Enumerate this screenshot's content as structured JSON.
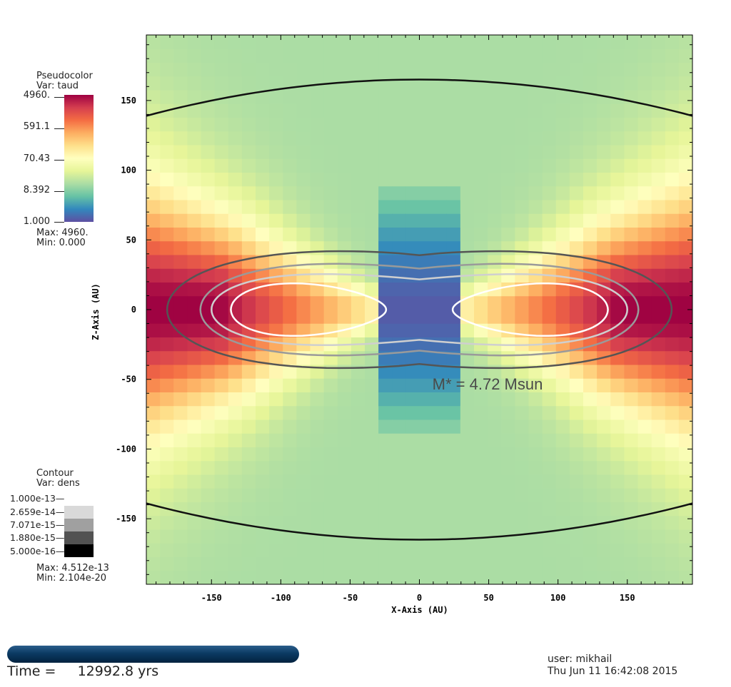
{
  "colors": {
    "tau_scale": [
      "#5e4fa2",
      "#3288bd",
      "#66c2a5",
      "#abdda4",
      "#e6f598",
      "#ffffbf",
      "#fee08b",
      "#fdae61",
      "#f46d43",
      "#d53e4f",
      "#9e0142"
    ],
    "contour_fills": [
      "#d9d9d9",
      "#a0a0a0",
      "#525252",
      "#000000"
    ],
    "contour_lines": [
      "#111111",
      "#555555",
      "#9a9a9a",
      "#cfcfcf",
      "#ffffff"
    ]
  },
  "pseudocolor_legend": {
    "title": "Pseudocolor",
    "var": "Var: taud",
    "labels": [
      "4960.",
      "591.1",
      "70.43",
      "8.392",
      "1.000"
    ],
    "max": "Max:  4960.",
    "min": "Min:  0.000"
  },
  "contour_legend": {
    "title": "Contour",
    "var": "Var: dens",
    "labels": [
      "1.000e-13",
      "2.659e-14",
      "7.071e-15",
      "1.880e-15",
      "5.000e-16"
    ],
    "max": "Max:  4.512e-13",
    "min": "Min:  2.104e-20"
  },
  "chart_data": {
    "type": "heatmap",
    "xlabel": "X-Axis (AU)",
    "ylabel": "Z-Axis (AU)",
    "xlim": [
      -197,
      197
    ],
    "ylim": [
      -197,
      197
    ],
    "xticks": [
      -150,
      -100,
      -50,
      0,
      50,
      100,
      150
    ],
    "yticks": [
      150,
      100,
      50,
      0,
      -50,
      -100,
      -150
    ],
    "color_var": "taud",
    "color_range": [
      1.0,
      4960.0
    ],
    "color_scale": "log",
    "contour_var": "dens",
    "contour_levels": [
      1e-13,
      2.659e-14,
      7.071e-15,
      1.88e-15,
      5e-16
    ],
    "annotation": "M* = 4.72 Msun"
  },
  "footer": {
    "time_prefix": "Time =",
    "time_value": "12992.8 yrs",
    "user": "user: mikhail",
    "date": "Thu Jun 11 16:42:08 2015"
  }
}
